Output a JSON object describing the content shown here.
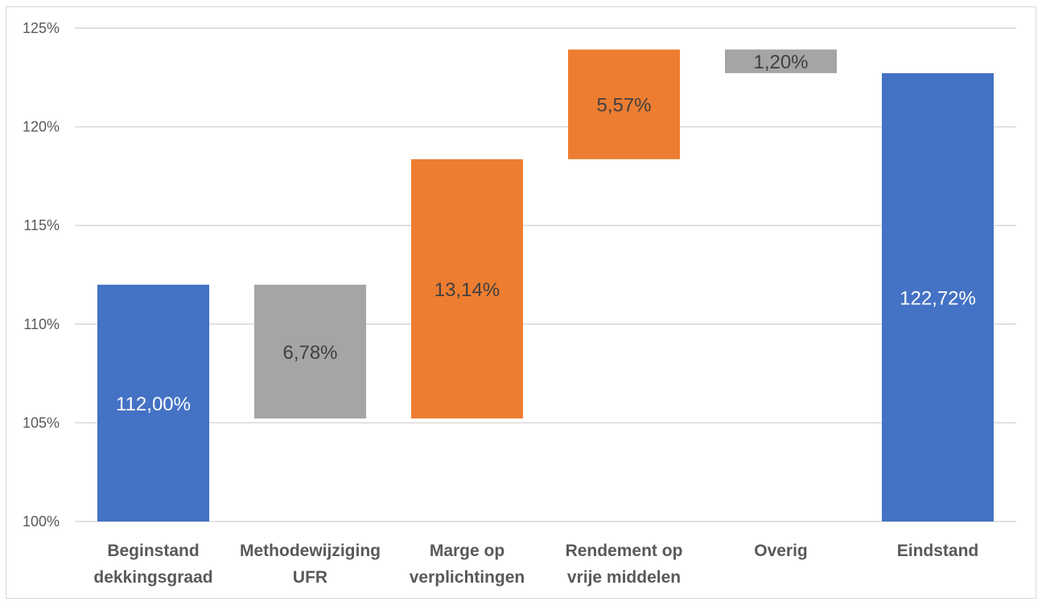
{
  "chart_data": {
    "type": "bar",
    "subtype": "waterfall",
    "title": "",
    "xlabel": "",
    "ylabel": "",
    "ylim": [
      100,
      125
    ],
    "yticks": [
      "100%",
      "105%",
      "110%",
      "115%",
      "120%",
      "125%"
    ],
    "ytick_values": [
      100,
      105,
      110,
      115,
      120,
      125
    ],
    "grid": true,
    "legend": "none",
    "categories": [
      [
        "Beginstand",
        "dekkingsgraad"
      ],
      [
        "Methodewijziging",
        "UFR"
      ],
      [
        "Marge op",
        "verplichtingen"
      ],
      [
        "Rendement op",
        "vrije middelen"
      ],
      [
        "Overig"
      ],
      [
        "Eindstand"
      ]
    ],
    "bars": [
      {
        "base": 100,
        "top": 112.0,
        "label": "112,00%",
        "color": "#4472c4",
        "kind": "total"
      },
      {
        "base": 105.22,
        "top": 112.0,
        "label": "6,78%",
        "color": "#a5a5a5",
        "kind": "decrease"
      },
      {
        "base": 105.22,
        "top": 118.36,
        "label": "13,14%",
        "color": "#ed7d31",
        "kind": "increase"
      },
      {
        "base": 118.36,
        "top": 123.92,
        "label": "5,57%",
        "color": "#ed7d31",
        "kind": "increase"
      },
      {
        "base": 122.72,
        "top": 123.92,
        "label": "1,20%",
        "color": "#a5a5a5",
        "kind": "decrease"
      },
      {
        "base": 100,
        "top": 122.72,
        "label": "122,72%",
        "color": "#4472c4",
        "kind": "total"
      }
    ],
    "colors": {
      "total": "#4472c4",
      "increase": "#ed7d31",
      "decrease": "#a5a5a5",
      "gridline": "#d9d9d9",
      "label_on_dark": "#ffffff",
      "label_on_light": "#404040"
    }
  }
}
